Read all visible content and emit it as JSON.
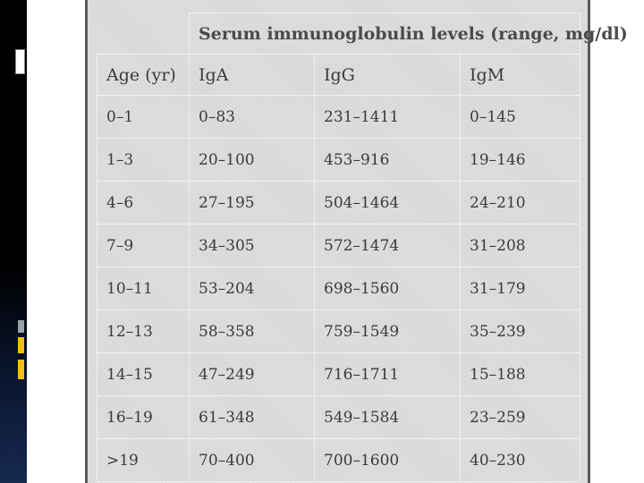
{
  "table": {
    "title": "Serum immunoglobulin levels (range, mg/dl)",
    "headers": [
      "Age (yr)",
      "IgA",
      "IgG",
      "IgM"
    ],
    "rows": [
      [
        "0–1",
        "0–83",
        "231–1411",
        "0–145"
      ],
      [
        "1–3",
        "20–100",
        "453–916",
        "19–146"
      ],
      [
        "4–6",
        "27–195",
        "504–1464",
        "24–210"
      ],
      [
        "7–9",
        "34–305",
        "572–1474",
        "31–208"
      ],
      [
        "10–11",
        "53–204",
        "698–1560",
        "31–179"
      ],
      [
        "12–13",
        "58–358",
        "759–1549",
        "35–239"
      ],
      [
        "14–15",
        "47–249",
        "716–1711",
        "15–188"
      ],
      [
        "16–19",
        "61–348",
        "549–1584",
        "23–259"
      ],
      [
        ">19",
        "70–400",
        "700–1600",
        "40–230"
      ]
    ]
  },
  "colors": {
    "table_background": "#d8d8d8",
    "text": "#3a3a3a",
    "accent_yellow": "#f2c200",
    "accent_gray": "#9aa0aa"
  }
}
